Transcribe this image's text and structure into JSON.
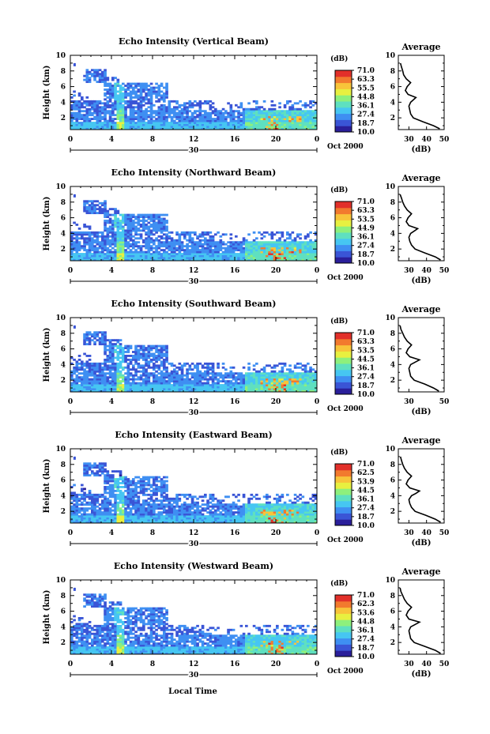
{
  "figure": {
    "xlabel": "Local Time",
    "date_label": "30",
    "date_suffix": "Oct 2000",
    "colorbar_unit": "(dB)",
    "avg_title": "Average",
    "avg_xlabel": "(dB)",
    "ylabel": "Height (km)"
  },
  "colors": {
    "colormap": [
      "#2a1f9a",
      "#3a55d6",
      "#3f8ff2",
      "#46c6f2",
      "#5fe0c0",
      "#8ef07c",
      "#e8f040",
      "#f8c43a",
      "#f27a2e",
      "#e2302a"
    ],
    "axis": "#000000",
    "profile_line": "#000000",
    "background": "#ffffff"
  },
  "chart_data": [
    {
      "type": "heatmap",
      "title": "Echo Intensity (Vertical Beam)",
      "ylabel": "Height (km)",
      "xlabel": "",
      "x_ticks": [
        "0",
        "4",
        "8",
        "12",
        "16",
        "20",
        "0"
      ],
      "xlim": [
        0,
        24
      ],
      "y_ticks": [
        "2",
        "4",
        "6",
        "8",
        "10"
      ],
      "ylim": [
        0.5,
        10
      ],
      "colorbar": {
        "unit": "(dB)",
        "ticks": [
          "71.0",
          "63.3",
          "55.5",
          "44.8",
          "36.1",
          "27.4",
          "18.7",
          "10.0"
        ],
        "range": [
          10.0,
          71.0
        ]
      },
      "average_profile": {
        "title": "Average",
        "xlabel": "(dB)",
        "x_ticks": [
          "30",
          "40",
          "50"
        ],
        "xlim": [
          24,
          50
        ],
        "ylim": [
          0.5,
          10
        ],
        "heights": [
          0.6,
          1.0,
          1.5,
          2.0,
          2.5,
          3.0,
          3.5,
          4.0,
          4.3,
          4.6,
          5.0,
          5.5,
          6.0,
          6.5,
          7.0,
          7.5,
          8.0,
          8.5,
          9.0
        ],
        "values": [
          47.5,
          44,
          38,
          32.5,
          31,
          30.5,
          30,
          31,
          32.5,
          34,
          29.5,
          28,
          29,
          31,
          28.5,
          27,
          26.5,
          25.8,
          25.2
        ]
      }
    },
    {
      "type": "heatmap",
      "title": "Echo Intensity (Northward Beam)",
      "ylabel": "Height (km)",
      "xlabel": "",
      "x_ticks": [
        "0",
        "4",
        "8",
        "12",
        "16",
        "20",
        "0"
      ],
      "xlim": [
        0,
        24
      ],
      "y_ticks": [
        "2",
        "4",
        "6",
        "8",
        "10"
      ],
      "ylim": [
        0.5,
        10
      ],
      "colorbar": {
        "unit": "(dB)",
        "ticks": [
          "71.0",
          "63.3",
          "53.5",
          "44.9",
          "36.1",
          "27.4",
          "18.7",
          "10.0"
        ],
        "range": [
          10.0,
          71.0
        ]
      },
      "average_profile": {
        "title": "Average",
        "xlabel": "(dB)",
        "x_ticks": [
          "30",
          "40",
          "50"
        ],
        "xlim": [
          24,
          50
        ],
        "ylim": [
          0.5,
          10
        ],
        "heights": [
          0.6,
          1.0,
          1.5,
          2.0,
          2.5,
          3.0,
          3.5,
          4.0,
          4.3,
          4.6,
          5.0,
          5.5,
          6.0,
          6.5,
          7.0,
          7.5,
          8.0,
          8.5,
          9.0
        ],
        "values": [
          48,
          45,
          39,
          33.5,
          31.5,
          30.5,
          30,
          31,
          33,
          35,
          30,
          28.5,
          29.5,
          31.5,
          29,
          27.5,
          26.5,
          25.8,
          25
        ]
      }
    },
    {
      "type": "heatmap",
      "title": "Echo Intensity (Southward Beam)",
      "ylabel": "Height (km)",
      "xlabel": "",
      "x_ticks": [
        "0",
        "4",
        "8",
        "12",
        "16",
        "20",
        "0"
      ],
      "xlim": [
        0,
        24
      ],
      "y_ticks": [
        "2",
        "4",
        "6",
        "8",
        "10"
      ],
      "ylim": [
        0.5,
        10
      ],
      "colorbar": {
        "unit": "(dB)",
        "ticks": [
          "71.0",
          "63.3",
          "53.5",
          "44.5",
          "36.1",
          "27.4",
          "18.7",
          "10.0"
        ],
        "range": [
          10.0,
          71.0
        ]
      },
      "average_profile": {
        "title": "Average",
        "xlabel": "(dB)",
        "x_ticks": [
          "30",
          "50"
        ],
        "xlim": [
          24,
          50
        ],
        "ylim": [
          0.5,
          10
        ],
        "heights": [
          0.6,
          1.0,
          1.5,
          2.0,
          2.5,
          3.0,
          3.5,
          4.0,
          4.3,
          4.6,
          5.0,
          5.5,
          6.0,
          6.5,
          7.0,
          7.5,
          8.0,
          8.5,
          9.0
        ],
        "values": [
          47,
          44,
          39,
          33,
          31,
          30.5,
          30,
          31,
          33.5,
          36,
          30.5,
          28.5,
          29.5,
          31.5,
          29,
          27.5,
          26.5,
          25.5,
          25
        ]
      }
    },
    {
      "type": "heatmap",
      "title": "Echo Intensity (Eastward Beam)",
      "ylabel": "Height (km)",
      "xlabel": "",
      "x_ticks": [
        "0",
        "4",
        "8",
        "12",
        "16",
        "20",
        "0"
      ],
      "xlim": [
        0,
        24
      ],
      "y_ticks": [
        "2",
        "4",
        "6",
        "8",
        "10"
      ],
      "ylim": [
        0.5,
        10
      ],
      "colorbar": {
        "unit": "(dB)",
        "ticks": [
          "71.0",
          "62.5",
          "53.9",
          "44.5",
          "36.1",
          "27.4",
          "18.7",
          "10.0"
        ],
        "range": [
          10.0,
          71.0
        ]
      },
      "average_profile": {
        "title": "Average",
        "xlabel": "(dB)",
        "x_ticks": [
          "30",
          "40",
          "50"
        ],
        "xlim": [
          24,
          50
        ],
        "ylim": [
          0.5,
          10
        ],
        "heights": [
          0.6,
          1.0,
          1.5,
          2.0,
          2.5,
          3.0,
          3.5,
          4.0,
          4.3,
          4.6,
          5.0,
          5.5,
          6.0,
          6.5,
          7.0,
          7.5,
          8.0,
          8.5,
          9.0
        ],
        "values": [
          48,
          45,
          39.5,
          33.5,
          31.5,
          30.5,
          30,
          31.5,
          34,
          36,
          30.5,
          28.5,
          29.5,
          31.5,
          29,
          27.5,
          26.5,
          25.8,
          25.2
        ]
      }
    },
    {
      "type": "heatmap",
      "title": "Echo Intensity (Westward Beam)",
      "ylabel": "Height (km)",
      "xlabel": "Local Time",
      "x_ticks": [
        "0",
        "4",
        "8",
        "12",
        "16",
        "20",
        "0"
      ],
      "xlim": [
        0,
        24
      ],
      "y_ticks": [
        "2",
        "4",
        "6",
        "8",
        "10"
      ],
      "ylim": [
        0.5,
        10
      ],
      "colorbar": {
        "unit": "(dB)",
        "ticks": [
          "71.0",
          "62.3",
          "53.6",
          "44.8",
          "36.1",
          "27.4",
          "18.7",
          "10.0"
        ],
        "range": [
          10.0,
          71.0
        ]
      },
      "average_profile": {
        "title": "Average",
        "xlabel": "(dB)",
        "x_ticks": [
          "30",
          "40",
          "50"
        ],
        "xlim": [
          24,
          50
        ],
        "ylim": [
          0.5,
          10
        ],
        "heights": [
          0.6,
          1.0,
          1.5,
          2.0,
          2.5,
          3.0,
          3.5,
          4.0,
          4.3,
          4.6,
          5.0,
          5.5,
          6.0,
          6.5,
          7.0,
          7.5,
          8.0,
          8.5,
          9.0
        ],
        "values": [
          48,
          45,
          39,
          33,
          31,
          30.5,
          30,
          31,
          33.5,
          36,
          30,
          28.5,
          29.5,
          31.5,
          29,
          27.5,
          26.5,
          25.5,
          25
        ]
      }
    }
  ]
}
